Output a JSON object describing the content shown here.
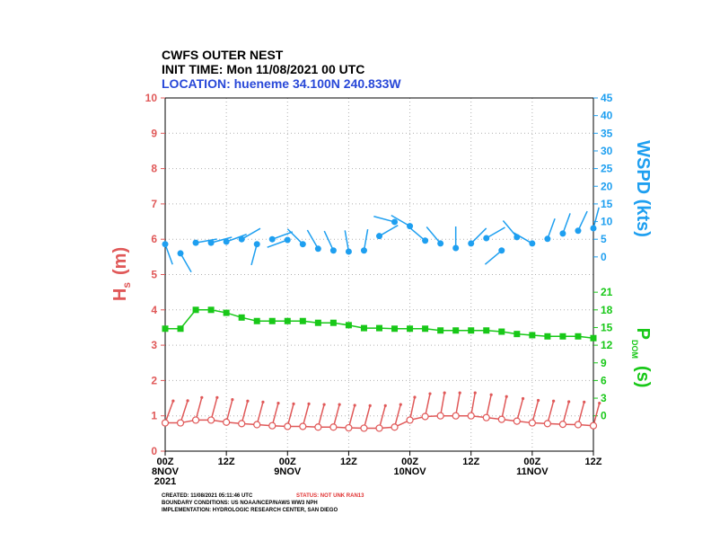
{
  "header": {
    "title": "CWFS OUTER NEST",
    "init_time": "INIT TIME: Mon 11/08/2021 00 UTC",
    "location": "LOCATION: hueneme 34.100N 240.833W"
  },
  "chart_data": {
    "type": "line",
    "x": [
      0,
      3,
      6,
      9,
      12,
      15,
      18,
      21,
      24,
      27,
      30,
      33,
      36,
      39,
      42,
      45,
      48,
      51,
      54,
      57,
      60,
      63,
      66,
      69,
      72,
      75,
      78,
      81,
      84
    ],
    "xlim": [
      0,
      84
    ],
    "xticks": [
      {
        "value": 0,
        "label": "00Z"
      },
      {
        "value": 12,
        "label": "12Z"
      },
      {
        "value": 24,
        "label": "00Z"
      },
      {
        "value": 36,
        "label": "12Z"
      },
      {
        "value": 48,
        "label": "00Z"
      },
      {
        "value": 60,
        "label": "12Z"
      },
      {
        "value": 72,
        "label": "00Z"
      },
      {
        "value": 84,
        "label": "12Z"
      }
    ],
    "x_dates": [
      {
        "value": 0,
        "label": "8NOV"
      },
      {
        "value": 24,
        "label": "9NOV"
      },
      {
        "value": 48,
        "label": "10NOV"
      },
      {
        "value": 72,
        "label": "11NOV"
      }
    ],
    "x_year": "2021",
    "ylim": [
      0,
      10
    ],
    "yticks": [
      0,
      1,
      2,
      3,
      4,
      5,
      6,
      7,
      8,
      9,
      10
    ],
    "y_label": {
      "main": "H",
      "sub": "s",
      "units": "(m)"
    },
    "y2lim": [
      0,
      45
    ],
    "y2ticks": [
      0,
      5,
      10,
      15,
      20,
      25,
      30,
      35,
      40,
      45
    ],
    "y2_label": "WSPD (kts)",
    "y3lim": [
      0,
      21
    ],
    "y3ticks": [
      0,
      3,
      6,
      9,
      12,
      15,
      18,
      21
    ],
    "y3_label": {
      "main": "P",
      "sub": "DOM",
      "units": "(s)"
    },
    "grid": true,
    "series": [
      {
        "color": "#e05858",
        "axis": "y",
        "values": [
          0.8,
          0.8,
          0.88,
          0.88,
          0.82,
          0.78,
          0.75,
          0.72,
          0.7,
          0.7,
          0.68,
          0.68,
          0.66,
          0.65,
          0.65,
          0.68,
          0.88,
          0.98,
          1.0,
          1.0,
          1.0,
          0.95,
          0.9,
          0.85,
          0.8,
          0.78,
          0.76,
          0.75,
          0.72
        ],
        "dir": [
          20,
          18,
          15,
          15,
          15,
          15,
          15,
          15,
          15,
          15,
          15,
          15,
          15,
          15,
          15,
          15,
          12,
          12,
          10,
          10,
          10,
          12,
          12,
          15,
          15,
          15,
          15,
          15,
          15
        ]
      },
      {
        "color": "#1e9ff0",
        "axis": "y2",
        "values": [
          3.6,
          1,
          4,
          4,
          4.3,
          5,
          3.6,
          5,
          4.8,
          3.6,
          2.3,
          1.8,
          1.5,
          1.8,
          5.9,
          9.9,
          8.7,
          4.6,
          3.8,
          2.5,
          3.8,
          5.3,
          1.8,
          5.6,
          3.8,
          5.1,
          6.6,
          7.4,
          8.1
        ],
        "dir": [
          160,
          150,
          80,
          75,
          70,
          60,
          195,
          70,
          250,
          315,
          330,
          335,
          350,
          10,
          60,
          285,
          300,
          310,
          320,
          0,
          45,
          60,
          230,
          320,
          300,
          20,
          20,
          25,
          15
        ]
      },
      {
        "color": "#18c818",
        "axis": "y3",
        "values": [
          14.8,
          14.8,
          18,
          18,
          17.5,
          16.7,
          16.1,
          16.1,
          16.1,
          16.1,
          15.8,
          15.8,
          15.4,
          14.9,
          14.9,
          14.8,
          14.8,
          14.8,
          14.5,
          14.5,
          14.5,
          14.5,
          14.3,
          13.9,
          13.7,
          13.5,
          13.5,
          13.5,
          13.2
        ]
      }
    ]
  },
  "footer": {
    "created": "CREATED: 11/08/2021 05:11:46 UTC",
    "status": "STATUS: NOT UNK RAN13",
    "boundary": "BOUNDARY CONDITIONS: US NOAA/NCEP/NAWS WW3 NPH",
    "implementation": "IMPLEMENTATION: HYDROLOGIC RESEARCH CENTER, SAN DIEGO"
  }
}
